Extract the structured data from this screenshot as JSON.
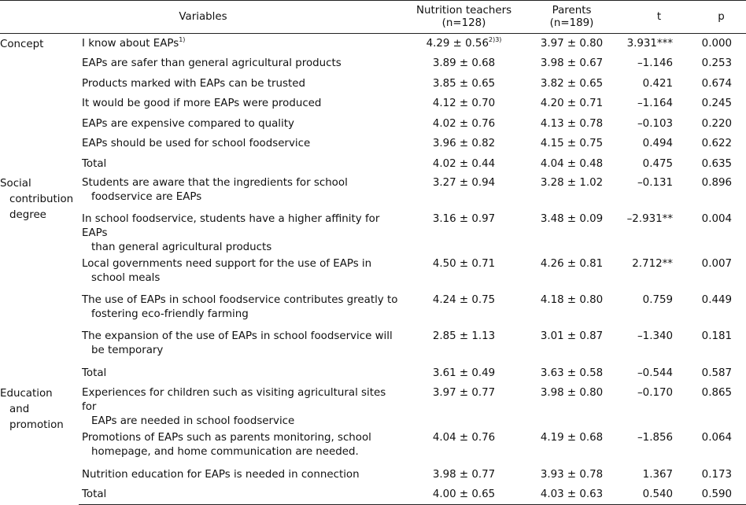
{
  "header": {
    "variables": "Variables",
    "nt_line1": "Nutrition teachers",
    "nt_line2": "(n=128)",
    "pa_line1": "Parents",
    "pa_line2": "(n=189)",
    "t": "t",
    "p": "p"
  },
  "groups": {
    "concept": "Concept",
    "social_1": "Social",
    "social_2": "contribution",
    "social_3": "degree",
    "edu_1": "Education",
    "edu_2": "and",
    "edu_3": "promotion"
  },
  "rows": [
    {
      "var1": "I know about EAPs",
      "var_sup": "1)",
      "var2": "",
      "nt": "4.29 ± 0.56",
      "nt_sup": "2)3)",
      "pa": "3.97 ± 0.80",
      "t": "3.931***",
      "p": "0.000"
    },
    {
      "var1": "EAPs are safer than general agricultural products",
      "var2": "",
      "nt": "3.89 ± 0.68",
      "pa": "3.98 ± 0.67",
      "t": "–1.146",
      "p": "0.253"
    },
    {
      "var1": "Products marked with EAPs can be trusted",
      "var2": "",
      "nt": "3.85 ± 0.65",
      "pa": "3.82 ± 0.65",
      "t": "0.421",
      "p": "0.674"
    },
    {
      "var1": "It would be good if more EAPs were produced",
      "var2": "",
      "nt": "4.12 ± 0.70",
      "pa": "4.20 ± 0.71",
      "t": "–1.164",
      "p": "0.245"
    },
    {
      "var1": "EAPs are expensive compared to quality",
      "var2": "",
      "nt": "4.02 ± 0.76",
      "pa": "4.13 ± 0.78",
      "t": "–0.103",
      "p": "0.220"
    },
    {
      "var1": "EAPs should be used for school foodservice",
      "var2": "",
      "nt": "3.96 ± 0.82",
      "pa": "4.15 ± 0.75",
      "t": "0.494",
      "p": "0.622"
    },
    {
      "var1": "Total",
      "var2": "",
      "nt": "4.02 ± 0.44",
      "pa": "4.04 ± 0.48",
      "t": "0.475",
      "p": "0.635"
    },
    {
      "var1": "Students are aware that the ingredients for school",
      "var2": "foodservice are EAPs",
      "nt": "3.27 ± 0.94",
      "pa": "3.28 ± 1.02",
      "t": "–0.131",
      "p": "0.896"
    },
    {
      "var1": "In school foodservice, students have a higher affinity for EAPs",
      "var2": "than general agricultural products",
      "nt": "3.16 ± 0.97",
      "pa": "3.48 ± 0.09",
      "t": "–2.931**",
      "p": "0.004"
    },
    {
      "var1": "Local governments need support for the use of EAPs in",
      "var2": "school meals",
      "nt": "4.50 ± 0.71",
      "pa": "4.26 ± 0.81",
      "t": "2.712**",
      "p": "0.007"
    },
    {
      "var1": "The use of EAPs in school foodservice contributes greatly to",
      "var2": "fostering eco-friendly farming",
      "nt": "4.24 ± 0.75",
      "pa": "4.18 ± 0.80",
      "t": "0.759",
      "p": "0.449"
    },
    {
      "var1": "The expansion of the use of EAPs in school foodservice will",
      "var2": "be temporary",
      "nt": "2.85 ± 1.13",
      "pa": "3.01 ± 0.87",
      "t": "–1.340",
      "p": "0.181"
    },
    {
      "var1": "Total",
      "var2": "",
      "nt": "3.61 ± 0.49",
      "pa": "3.63 ± 0.58",
      "t": "–0.544",
      "p": "0.587"
    },
    {
      "var1": "Experiences for children such as visiting agricultural sites for",
      "var2": "EAPs are needed in school foodservice",
      "nt": "3.97 ± 0.77",
      "pa": "3.98 ± 0.80",
      "t": "–0.170",
      "p": "0.865"
    },
    {
      "var1": "Promotions of EAPs such as parents monitoring, school",
      "var2": "homepage, and home communication are needed.",
      "nt": "4.04 ± 0.76",
      "pa": "4.19 ± 0.68",
      "t": "–1.856",
      "p": "0.064"
    },
    {
      "var1": "Nutrition education for EAPs is needed in connection",
      "var2": "",
      "nt": "3.98 ± 0.77",
      "pa": "3.93 ± 0.78",
      "t": "1.367",
      "p": "0.173"
    },
    {
      "var1": "Total",
      "var2": "",
      "nt": "4.00 ± 0.65",
      "pa": "4.03 ± 0.63",
      "t": "0.540",
      "p": "0.590"
    }
  ]
}
